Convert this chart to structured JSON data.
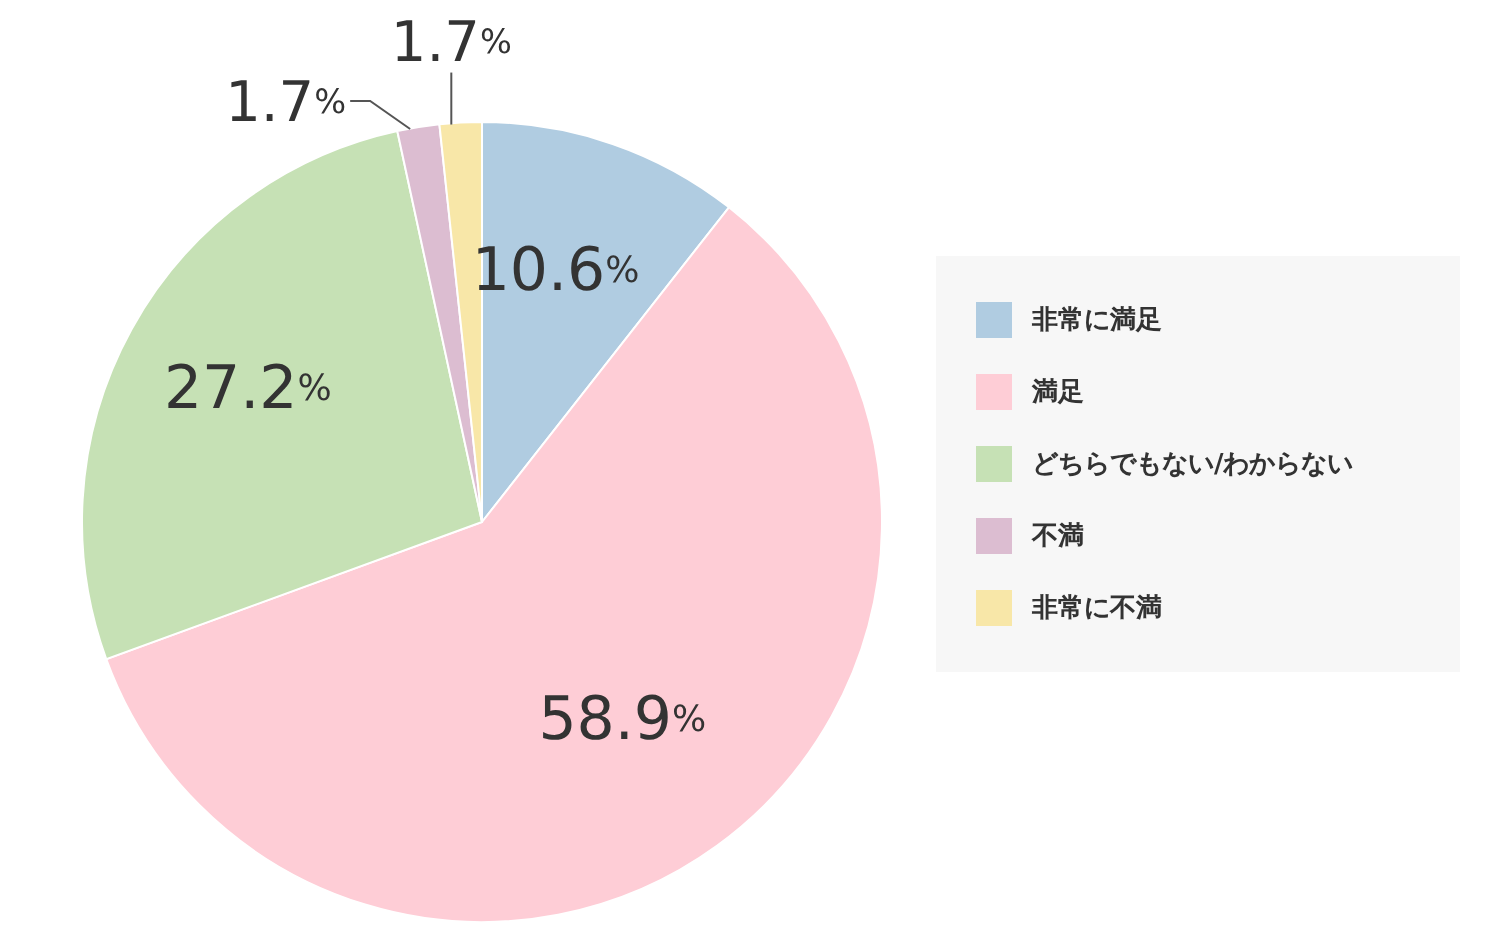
{
  "chart_data": {
    "type": "pie",
    "categories": [
      "非常に満足",
      "満足",
      "どちらでもない/わからない",
      "不満",
      "非常に不満"
    ],
    "values": [
      10.6,
      58.9,
      27.2,
      1.7,
      1.7
    ],
    "colors": [
      "#b0cce1",
      "#fecdd6",
      "#c6e1b5",
      "#dcbdd1",
      "#f8e7a8"
    ],
    "value_labels": [
      "10.6%",
      "58.9%",
      "27.2%",
      "1.7%",
      "1.7%"
    ],
    "legend": "right"
  }
}
